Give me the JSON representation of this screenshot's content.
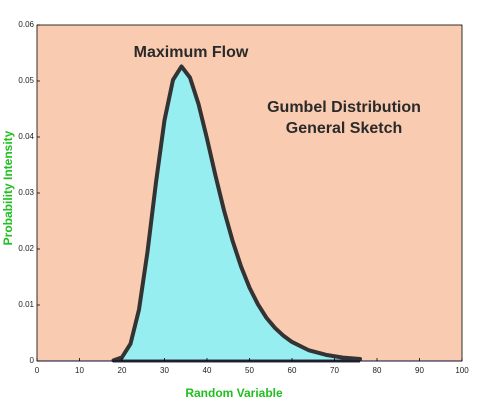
{
  "chart_data": {
    "type": "area",
    "annotations": [
      "Maximum Flow",
      "Gumbel Distribution",
      "General Sketch"
    ],
    "xlabel": "Random Variable",
    "ylabel": "Probability Intensity",
    "x": [
      18,
      20,
      22,
      24,
      26,
      28,
      30,
      32,
      34,
      36,
      38,
      40,
      42,
      44,
      46,
      48,
      50,
      52,
      54,
      56,
      58,
      60,
      64,
      68,
      72,
      76
    ],
    "values": [
      0.0001,
      0.00065,
      0.00307,
      0.00918,
      0.0195,
      0.0319,
      0.043,
      0.0502,
      0.0526,
      0.0506,
      0.0459,
      0.0397,
      0.0331,
      0.0269,
      0.0215,
      0.0169,
      0.0131,
      0.0101,
      0.0077,
      0.0059,
      0.0045,
      0.0034,
      0.0019,
      0.0011,
      0.0006,
      0.00035
    ],
    "color": "#96eef0",
    "line_color": "#333333",
    "background": "#f9cbb0",
    "xlim": [
      0,
      100
    ],
    "xticks": [
      0,
      10,
      20,
      30,
      40,
      50,
      60,
      70,
      80,
      90,
      100
    ],
    "ylim": [
      0,
      0.06
    ],
    "yticks": [
      0,
      0.01,
      0.02,
      0.03,
      0.04,
      0.05,
      0.06
    ]
  }
}
